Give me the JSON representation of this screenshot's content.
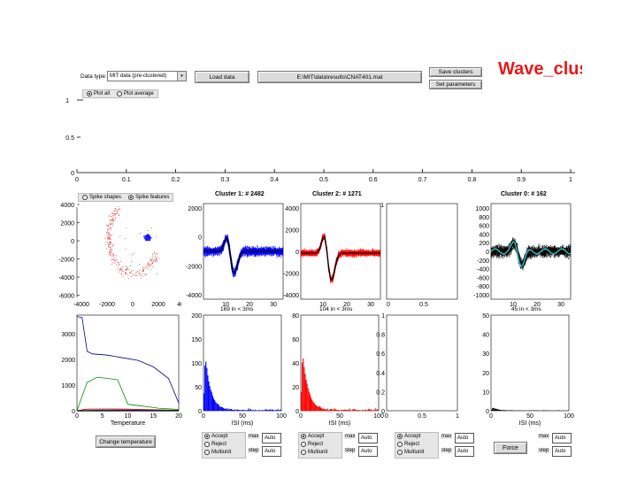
{
  "header": {
    "data_type_label": "Data type:",
    "data_type_value": "MIT data (pre-clustered)",
    "load_data": "Load data",
    "file_path": "E:\\MIT\\data\\results\\CNAT401.mat",
    "save_clusters": "Save clusters",
    "set_parameters": "Set parameters",
    "app_title": "Wave_clus",
    "plot_all": "Plot all",
    "plot_average": "Plot average"
  },
  "top_axis": {
    "y_ticks": [
      "1",
      "0.5",
      "0"
    ],
    "x_ticks": [
      "0",
      "0.1",
      "0.2",
      "0.3",
      "0.4",
      "0.5",
      "0.6",
      "0.7",
      "0.8",
      "0.9",
      "1"
    ]
  },
  "feature_panel": {
    "spike_shapes": "Spike shapes",
    "spike_features": "Spike features",
    "y_ticks": [
      "4000",
      "2000",
      "0",
      "-2000",
      "-4000",
      "-6000"
    ],
    "x_ticks": [
      "-4000",
      "-2000",
      "0",
      "2000",
      "4000"
    ]
  },
  "clusters": [
    {
      "title": "Cluster 1:  # 2482",
      "color": "#0000ff",
      "mean_color": "#000000",
      "y_ticks": [
        "2000",
        "0",
        "-2000",
        "-4000"
      ],
      "x_ticks": [
        "10",
        "20",
        "30"
      ],
      "isi_label": "169 in < 3ms",
      "isi_y_ticks": [
        "200",
        "150",
        "100",
        "50",
        "0"
      ],
      "isi_x_ticks": [
        "0",
        "50",
        "100"
      ],
      "isi_xlabel": "ISI (ms)",
      "isi_max": 200,
      "isi_peak": 145
    },
    {
      "title": "Cluster 2:  # 1271",
      "color": "#ff0000",
      "mean_color": "#000000",
      "y_ticks": [
        "4000",
        "2000",
        "0",
        "-2000",
        "-4000"
      ],
      "x_ticks": [
        "10",
        "20",
        "30"
      ],
      "isi_label": "104 in < 3ms",
      "isi_y_ticks": [
        "80",
        "60",
        "40",
        "20",
        "0"
      ],
      "isi_x_ticks": [
        "0",
        "50",
        "100"
      ],
      "isi_xlabel": "ISI (ms)",
      "isi_max": 80,
      "isi_peak": 62
    },
    {
      "title": "Cluster 0:  # 162",
      "color": "#000000",
      "mean_color": "#33cccc",
      "y_ticks": [
        "1000",
        "800",
        "600",
        "400",
        "200",
        "0",
        "-200",
        "-400",
        "-600",
        "-800",
        "-1000"
      ],
      "x_ticks": [
        "10",
        "20",
        "30"
      ],
      "isi_label": "45 in < 3ms",
      "isi_y_ticks": [
        "50",
        "40",
        "30",
        "20",
        "10",
        "0"
      ],
      "isi_x_ticks": [
        "0",
        "50",
        "100"
      ],
      "isi_xlabel": "ISI (ms)",
      "isi_max": 50,
      "isi_peak": 2
    }
  ],
  "empty_panels": {
    "top_y_ticks": [
      "1"
    ],
    "top_x_ticks": [
      "0",
      "0.5"
    ],
    "isi_y_ticks": [
      "1",
      "0.8",
      "0.6",
      "0.4",
      "0.2",
      "0"
    ],
    "isi_x_ticks": [
      "0",
      "0.5",
      "1"
    ]
  },
  "temperature_panel": {
    "xlabel": "Temperature",
    "y_ticks": [
      "3000",
      "2000",
      "1000",
      "0"
    ],
    "x_ticks": [
      "0",
      "5",
      "10",
      "15",
      "20"
    ],
    "change_temperature": "Change temperature"
  },
  "controls": {
    "accept": "Accept",
    "reject": "Reject",
    "multiunit": "Multiunit",
    "max": "max",
    "step": "step",
    "auto": "Auto",
    "force": "Force"
  }
}
